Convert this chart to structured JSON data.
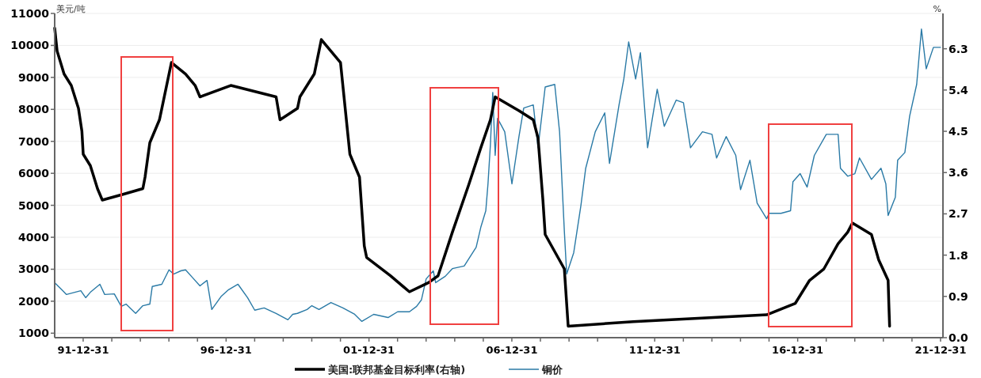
{
  "chart_data": {
    "type": "line",
    "legend": "bottom",
    "grid": "y",
    "xlim": [
      "1991-01-01",
      "2022-01-31"
    ],
    "xticks": [
      {
        "value": "1991-12-31",
        "label": "91-12-31"
      },
      {
        "value": "1992-12-31",
        "label": null
      },
      {
        "value": "1993-12-31",
        "label": null
      },
      {
        "value": "1994-12-31",
        "label": null
      },
      {
        "value": "1995-12-31",
        "label": null
      },
      {
        "value": "1996-12-31",
        "label": "96-12-31"
      },
      {
        "value": "1997-12-31",
        "label": null
      },
      {
        "value": "1998-12-31",
        "label": null
      },
      {
        "value": "1999-12-31",
        "label": null
      },
      {
        "value": "2000-12-31",
        "label": null
      },
      {
        "value": "2001-12-31",
        "label": "01-12-31"
      },
      {
        "value": "2002-12-31",
        "label": null
      },
      {
        "value": "2003-12-31",
        "label": null
      },
      {
        "value": "2004-12-31",
        "label": null
      },
      {
        "value": "2005-12-31",
        "label": null
      },
      {
        "value": "2006-12-31",
        "label": "06-12-31"
      },
      {
        "value": "2007-12-31",
        "label": null
      },
      {
        "value": "2008-12-31",
        "label": null
      },
      {
        "value": "2009-12-31",
        "label": null
      },
      {
        "value": "2010-12-31",
        "label": null
      },
      {
        "value": "2011-12-31",
        "label": "11-12-31"
      },
      {
        "value": "2012-12-31",
        "label": null
      },
      {
        "value": "2013-12-31",
        "label": null
      },
      {
        "value": "2014-12-31",
        "label": null
      },
      {
        "value": "2015-12-31",
        "label": null
      },
      {
        "value": "2016-12-31",
        "label": "16-12-31"
      },
      {
        "value": "2017-12-31",
        "label": null
      },
      {
        "value": "2018-12-31",
        "label": null
      },
      {
        "value": "2019-12-31",
        "label": null
      },
      {
        "value": "2020-12-31",
        "label": null
      },
      {
        "value": "2021-12-31",
        "label": "21-12-31"
      }
    ],
    "ylabel": "美元/吨",
    "y2label": "%",
    "ylim": [
      860,
      11000
    ],
    "yticks": [
      1000,
      2000,
      3000,
      4000,
      5000,
      6000,
      7000,
      8000,
      9000,
      10000,
      11000
    ],
    "y2lim": [
      0,
      7.07
    ],
    "y2ticks": [
      {
        "value": 0,
        "label": "0.0"
      },
      {
        "value": 0.9,
        "label": "0.9"
      },
      {
        "value": 1.8,
        "label": "1.8"
      },
      {
        "value": 2.7,
        "label": "2.7"
      },
      {
        "value": 3.6,
        "label": "3.6"
      },
      {
        "value": 4.5,
        "label": "4.5"
      },
      {
        "value": 5.4,
        "label": "5.4"
      },
      {
        "value": 6.3,
        "label": "6.3"
      }
    ],
    "series": [
      {
        "name": "美国:联邦基金目标利率(右轴)",
        "color": "#000000",
        "axis": "y2",
        "x": [
          "1991-01",
          "1991-02",
          "1991-05",
          "1991-08",
          "1991-11",
          "1991-12-15",
          "1992-01",
          "1992-04",
          "1992-07",
          "1992-09",
          "1993-06",
          "1994-02",
          "1994-03",
          "1994-05",
          "1994-09",
          "1995-02",
          "1995-08",
          "1995-12",
          "1996-02",
          "1997-03",
          "1998-10",
          "1998-11-20",
          "1999-07",
          "1999-08",
          "2000-02",
          "2000-05",
          "2001-01",
          "2001-05",
          "2001-09",
          "2001-11",
          "2001-12",
          "2002-10",
          "2003-06",
          "2004-02",
          "2004-06",
          "2004-12",
          "2005-07",
          "2005-12",
          "2006-04",
          "2006-06",
          "2007-04",
          "2007-10",
          "2007-12",
          "2008-02",
          "2008-03",
          "2008-11",
          "2008-12-20",
          "2011-04",
          "2015-12",
          "2016-12",
          "2017-06",
          "2017-12",
          "2018-06",
          "2018-10",
          "2018-12",
          "2019-08",
          "2019-11",
          "2020-03-01",
          "2020-03-10",
          "2020-03-20"
        ],
        "values": [
          6.75,
          6.25,
          5.75,
          5.5,
          5,
          4.5,
          4,
          3.75,
          3.25,
          3,
          3.13,
          3.25,
          3.5,
          4.25,
          4.75,
          6,
          5.75,
          5.5,
          5.25,
          5.5,
          5.25,
          4.75,
          5,
          5.25,
          5.75,
          6.5,
          6,
          4,
          3.5,
          2,
          1.75,
          1.35,
          1,
          1.2,
          1.35,
          2.3,
          3.35,
          4.15,
          4.75,
          5.25,
          4.95,
          4.75,
          4.35,
          3,
          2.25,
          1.5,
          0.25,
          0.35,
          0.5,
          0.75,
          1.25,
          1.5,
          2.05,
          2.3,
          2.5,
          2.25,
          1.7,
          1.25,
          0.75,
          0.25
        ]
      },
      {
        "name": "铜价",
        "color": "#2a7aa6",
        "x": [
          "1991-01",
          "1991-04",
          "1991-06",
          "1991-12",
          "1992-02",
          "1992-04",
          "1992-08",
          "1992-10",
          "1993-02",
          "1993-05",
          "1993-07",
          "1993-11",
          "1994-02",
          "1994-05",
          "1994-06",
          "1994-10",
          "1995-01",
          "1995-03",
          "1995-06",
          "1995-08",
          "1995-11",
          "1996-02",
          "1996-05",
          "1996-07",
          "1996-11",
          "1997-02",
          "1997-06",
          "1997-10",
          "1998-01",
          "1998-05",
          "1998-10",
          "1999-03",
          "1999-05",
          "1999-07",
          "1999-11",
          "2000-01",
          "2000-04",
          "2000-09",
          "2001-02",
          "2001-07",
          "2001-10",
          "2002-03",
          "2002-09",
          "2003-01",
          "2003-06",
          "2003-09",
          "2003-11",
          "2004-01",
          "2004-04",
          "2004-05",
          "2004-09",
          "2004-12",
          "2005-05",
          "2005-10",
          "2005-12",
          "2006-02",
          "2006-03",
          "2006-04",
          "2006-05",
          "2006-06",
          "2006-07",
          "2006-10",
          "2007-01",
          "2007-04",
          "2007-06",
          "2007-10",
          "2007-12",
          "2008-03",
          "2008-07",
          "2008-09",
          "2008-11",
          "2008-12",
          "2009-03",
          "2009-06",
          "2009-08",
          "2009-12",
          "2010-04",
          "2010-06",
          "2010-10",
          "2010-12",
          "2011-02",
          "2011-05",
          "2011-07",
          "2011-10",
          "2011-12",
          "2012-02",
          "2012-05",
          "2012-10",
          "2013-01",
          "2013-04",
          "2013-09",
          "2014-01",
          "2014-03",
          "2014-07",
          "2014-11",
          "2015-01",
          "2015-05",
          "2015-08",
          "2015-12",
          "2016-01",
          "2016-06",
          "2016-10",
          "2016-11",
          "2017-02",
          "2017-05",
          "2017-08",
          "2018-01",
          "2018-06",
          "2018-07",
          "2018-10",
          "2019-01",
          "2019-03",
          "2019-08",
          "2019-12",
          "2020-02",
          "2020-03",
          "2020-06",
          "2020-07",
          "2020-10",
          "2020-12",
          "2021-03",
          "2021-05",
          "2021-07",
          "2021-10",
          "2021-12-31"
        ],
        "values": [
          2580,
          2360,
          2210,
          2330,
          2110,
          2280,
          2530,
          2210,
          2230,
          1840,
          1910,
          1620,
          1860,
          1910,
          2460,
          2530,
          2980,
          2850,
          2950,
          2980,
          2730,
          2480,
          2650,
          1740,
          2160,
          2360,
          2530,
          2110,
          1720,
          1790,
          1620,
          1420,
          1590,
          1620,
          1740,
          1860,
          1740,
          1960,
          1790,
          1590,
          1370,
          1590,
          1490,
          1670,
          1670,
          1840,
          2040,
          2700,
          2950,
          2580,
          2780,
          3020,
          3100,
          3690,
          4330,
          4830,
          5670,
          6900,
          8530,
          6560,
          7720,
          7300,
          5670,
          7150,
          8040,
          8140,
          6800,
          8700,
          8780,
          7300,
          4190,
          2850,
          3520,
          5000,
          6160,
          7300,
          7890,
          6310,
          8140,
          8950,
          10110,
          8950,
          9770,
          6800,
          7720,
          8630,
          7470,
          8290,
          8210,
          6800,
          7300,
          7220,
          6480,
          7150,
          6560,
          5490,
          6410,
          5070,
          4580,
          4750,
          4750,
          4830,
          5740,
          5990,
          5570,
          6560,
          7220,
          7220,
          6160,
          5910,
          5990,
          6480,
          5810,
          6160,
          5670,
          4680,
          5250,
          6410,
          6650,
          7790,
          8780,
          10510,
          9270,
          9940,
          9940
        ]
      }
    ]
  }
}
